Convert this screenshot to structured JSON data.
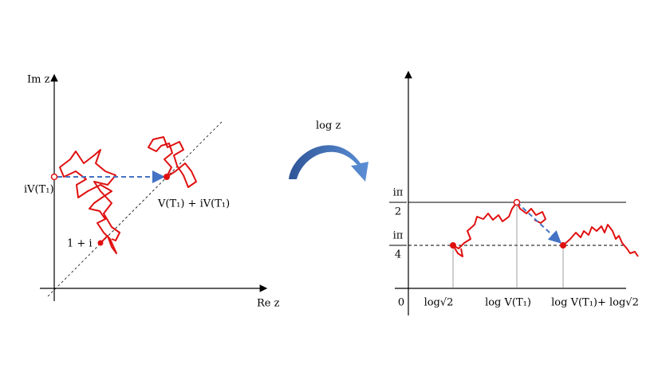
{
  "left_plane": {
    "y_axis_label": "Im z",
    "x_axis_label": "Re z",
    "start_label": "iV(T₁)",
    "end_label": "V(T₁) + iV(T₁)",
    "point_label": "1 + i"
  },
  "map_label": "log z",
  "right_plane": {
    "tick_half_numerator": "iπ",
    "tick_half_denominator": "2",
    "tick_quarter_numerator": "iπ",
    "tick_quarter_denominator": "4",
    "origin_label": "0",
    "x_labels": [
      "log√2",
      "log V(T₁)",
      "log V(T₁)+ log√2"
    ]
  }
}
